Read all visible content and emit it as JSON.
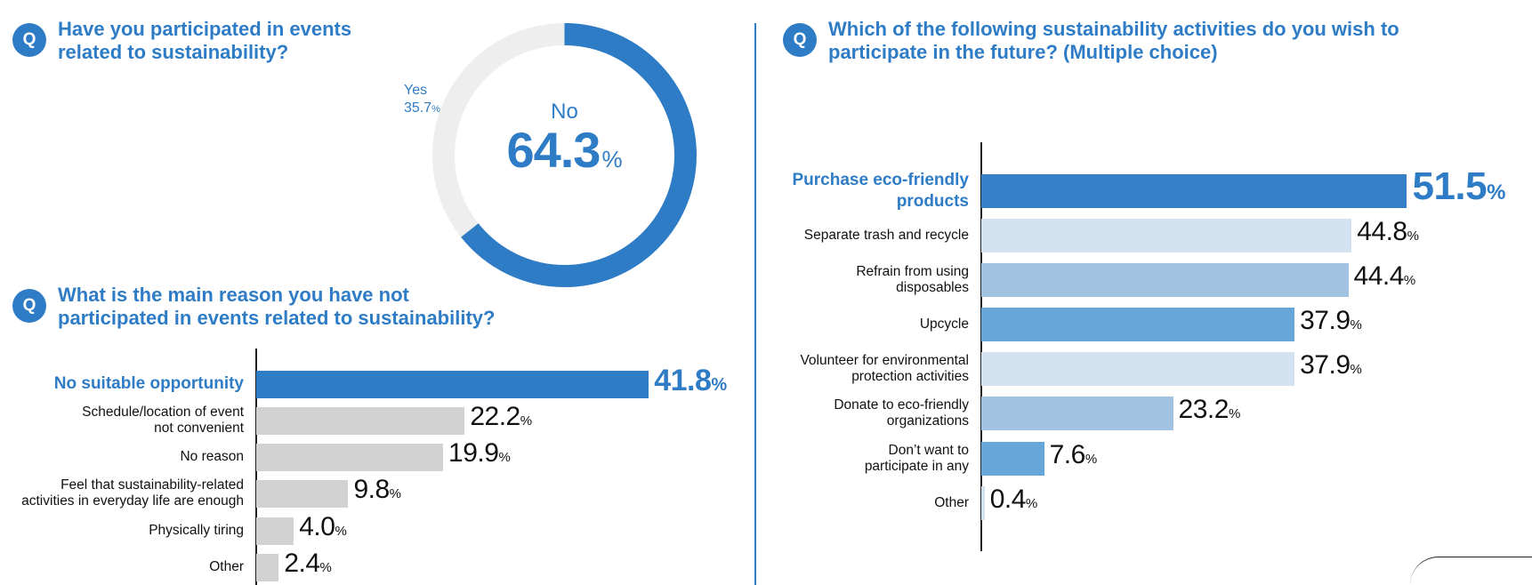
{
  "colors": {
    "primary": "#2f7cc6",
    "gray_bar": "#d2d2d2",
    "donut_track": "#eeeeee",
    "light_blue": "#d2e2f1",
    "mid_blue": "#a1c3e1",
    "bright_blue": "#67a6d8"
  },
  "q_badge_text": "Q",
  "percent_sign": "%",
  "q1": {
    "title_line1": "Have you participated in events",
    "title_line2": "related to sustainability?"
  },
  "q2": {
    "title_line1": "What is the main reason you have not",
    "title_line2": "participated in events related to sustainability?"
  },
  "q3": {
    "title_line1": "Which of the following sustainability activities do you wish to",
    "title_line2": "participate in the future? (Multiple choice)"
  },
  "chart_data": [
    {
      "type": "pie",
      "donut": true,
      "title": "Have you participated in events related to sustainability?",
      "slices": [
        {
          "label": "No",
          "value": 64.3,
          "display": "64.3",
          "color": "#2f7cc6"
        },
        {
          "label": "Yes",
          "value": 35.7,
          "display": "35.7",
          "color": "#eeeeee"
        }
      ]
    },
    {
      "type": "bar",
      "orientation": "horizontal",
      "title": "What is the main reason you have not participated in events related to sustainability?",
      "xlim": [
        0,
        45
      ],
      "bars": [
        {
          "label_lines": [
            "No suitable opportunity"
          ],
          "value": 41.8,
          "display": "41.8",
          "color": "#2f7cc6",
          "highlight": true
        },
        {
          "label_lines": [
            "Schedule/location of event",
            "not convenient"
          ],
          "value": 22.2,
          "display": "22.2",
          "color": "#d2d2d2"
        },
        {
          "label_lines": [
            "No reason"
          ],
          "value": 19.9,
          "display": "19.9",
          "color": "#d2d2d2"
        },
        {
          "label_lines": [
            "Feel that sustainability-related",
            "activities in everyday life are enough"
          ],
          "value": 9.8,
          "display": "9.8",
          "color": "#d2d2d2"
        },
        {
          "label_lines": [
            "Physically tiring"
          ],
          "value": 4.0,
          "display": "4.0",
          "color": "#d2d2d2"
        },
        {
          "label_lines": [
            "Other"
          ],
          "value": 2.4,
          "display": "2.4",
          "color": "#d2d2d2"
        }
      ]
    },
    {
      "type": "bar",
      "orientation": "horizontal",
      "title": "Which of the following sustainability activities do you wish to participate in the future? (Multiple choice)",
      "xlim": [
        0,
        55
      ],
      "bars": [
        {
          "label_lines": [
            "Purchase eco-friendly",
            "products"
          ],
          "value": 51.5,
          "display": "51.5",
          "color": "#3680c8",
          "highlight": true
        },
        {
          "label_lines": [
            "Separate trash and recycle"
          ],
          "value": 44.8,
          "display": "44.8",
          "color": "#d2e2f1"
        },
        {
          "label_lines": [
            "Refrain from using",
            "disposables"
          ],
          "value": 44.4,
          "display": "44.4",
          "color": "#a1c3e1"
        },
        {
          "label_lines": [
            "Upcycle"
          ],
          "value": 37.9,
          "display": "37.9",
          "color": "#67a6d8"
        },
        {
          "label_lines": [
            "Volunteer for environmental",
            "protection activities"
          ],
          "value": 37.9,
          "display": "37.9",
          "color": "#d2e2f1"
        },
        {
          "label_lines": [
            "Donate to eco-friendly",
            "organizations"
          ],
          "value": 23.2,
          "display": "23.2",
          "color": "#a1c3e1"
        },
        {
          "label_lines": [
            "Don’t want to",
            "participate in any"
          ],
          "value": 7.6,
          "display": "7.6",
          "color": "#67a6d8"
        },
        {
          "label_lines": [
            "Other"
          ],
          "value": 0.4,
          "display": "0.4",
          "color": "#d2e2f1"
        }
      ]
    }
  ]
}
